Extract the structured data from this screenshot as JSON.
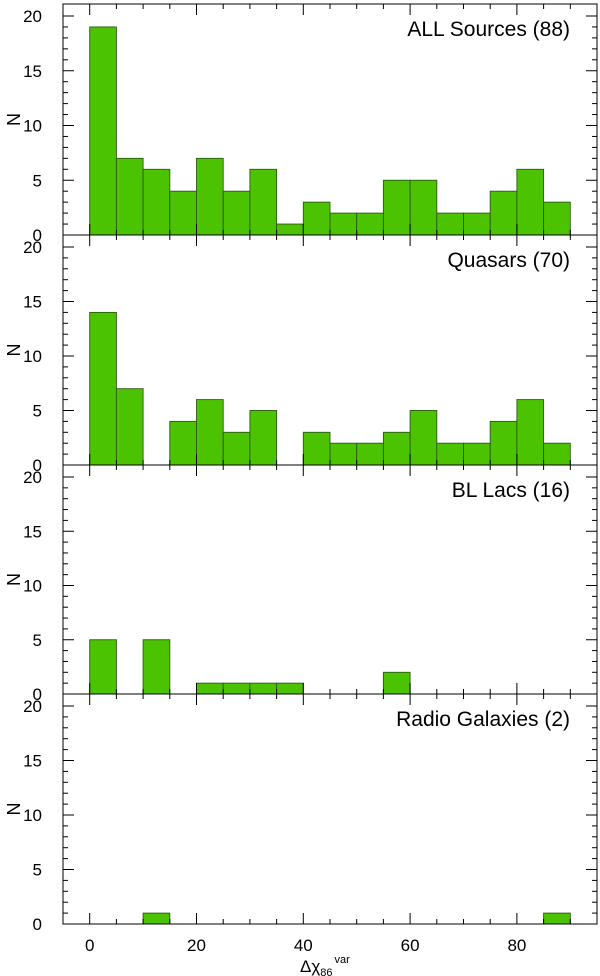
{
  "chart_data": [
    {
      "type": "bar",
      "title": "ALL Sources (88)",
      "xlabel": "",
      "ylabel": "N",
      "bin_edges": [
        0,
        5,
        10,
        15,
        20,
        25,
        30,
        35,
        40,
        45,
        50,
        55,
        60,
        65,
        70,
        75,
        80,
        85,
        90
      ],
      "values": [
        19,
        7,
        6,
        4,
        7,
        4,
        6,
        1,
        3,
        2,
        2,
        5,
        5,
        2,
        2,
        4,
        6,
        3
      ],
      "xlim": [
        -5,
        95
      ],
      "ylim": [
        0,
        20
      ],
      "yticks": [
        "0",
        "5",
        "10",
        "15",
        "20"
      ],
      "color": "#4cc300"
    },
    {
      "type": "bar",
      "title": "Quasars (70)",
      "xlabel": "",
      "ylabel": "N",
      "bin_edges": [
        0,
        5,
        10,
        15,
        20,
        25,
        30,
        35,
        40,
        45,
        50,
        55,
        60,
        65,
        70,
        75,
        80,
        85,
        90
      ],
      "values": [
        14,
        7,
        0,
        4,
        6,
        3,
        5,
        0,
        3,
        2,
        2,
        3,
        5,
        2,
        2,
        4,
        6,
        2
      ],
      "xlim": [
        -5,
        95
      ],
      "ylim": [
        0,
        20
      ],
      "yticks": [
        "0",
        "5",
        "10",
        "15",
        "20"
      ],
      "color": "#4cc300"
    },
    {
      "type": "bar",
      "title": "BL Lacs (16)",
      "xlabel": "",
      "ylabel": "N",
      "bin_edges": [
        0,
        5,
        10,
        15,
        20,
        25,
        30,
        35,
        40,
        45,
        50,
        55,
        60,
        65,
        70,
        75,
        80,
        85,
        90
      ],
      "values": [
        5,
        0,
        5,
        0,
        1,
        1,
        1,
        1,
        0,
        0,
        0,
        2,
        0,
        0,
        0,
        0,
        0,
        0
      ],
      "xlim": [
        -5,
        95
      ],
      "ylim": [
        0,
        20
      ],
      "yticks": [
        "0",
        "5",
        "10",
        "15",
        "20"
      ],
      "color": "#4cc300"
    },
    {
      "type": "bar",
      "title": "Radio Galaxies (2)",
      "xlabel": "Δχ",
      "xlabel_sub": "86",
      "xlabel_sup": "var",
      "ylabel": "N",
      "bin_edges": [
        0,
        5,
        10,
        15,
        20,
        25,
        30,
        35,
        40,
        45,
        50,
        55,
        60,
        65,
        70,
        75,
        80,
        85,
        90
      ],
      "values": [
        0,
        0,
        1,
        0,
        0,
        0,
        0,
        0,
        0,
        0,
        0,
        0,
        0,
        0,
        0,
        0,
        0,
        1
      ],
      "xlim": [
        -5,
        95
      ],
      "ylim": [
        0,
        20
      ],
      "yticks": [
        "0",
        "5",
        "10",
        "15",
        "20"
      ],
      "xticks": [
        "0",
        "20",
        "40",
        "60",
        "80"
      ],
      "color": "#4cc300"
    }
  ]
}
